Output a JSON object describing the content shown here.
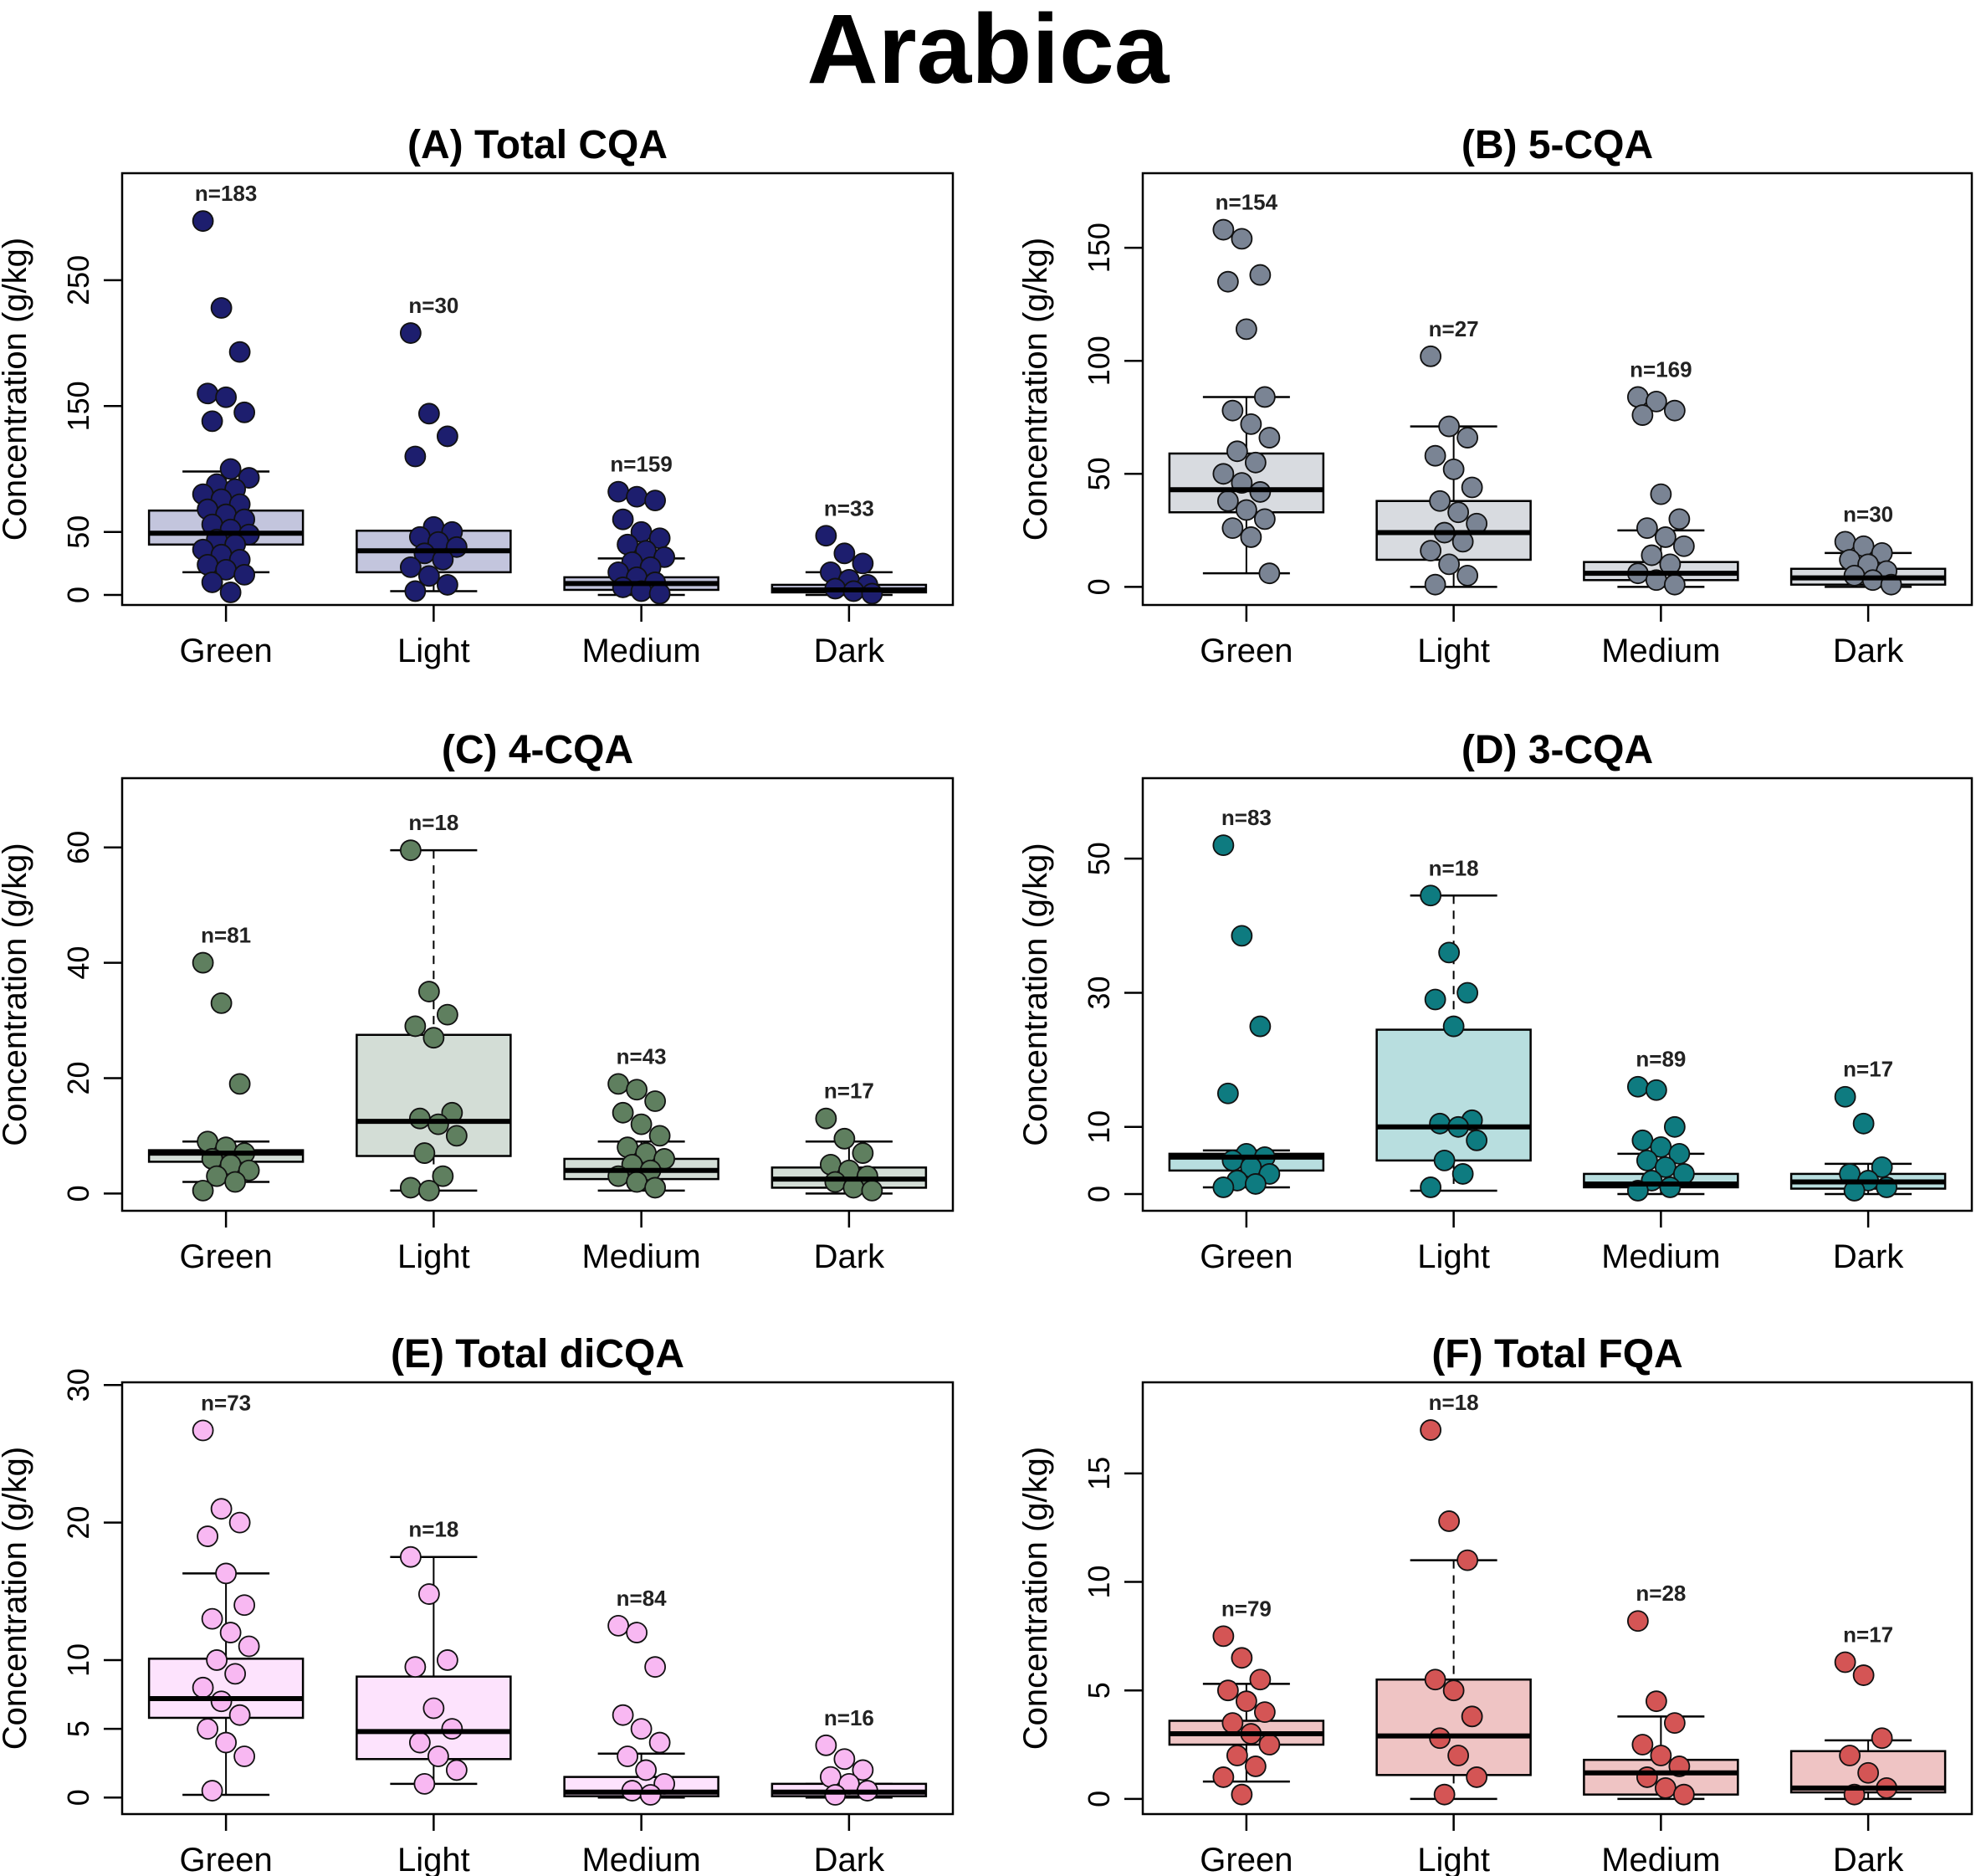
{
  "title": "Arabica",
  "chart_data": [
    {
      "type": "box",
      "title": "(A) Total CQA",
      "ylabel": "Concentration (g/kg)",
      "ylim": [
        -8,
        335
      ],
      "yticks": [
        0,
        50,
        150,
        250
      ],
      "categories": [
        "Green",
        "Light",
        "Medium",
        "Dark"
      ],
      "box_fill": "#C3C5DD",
      "point_color": "#1D1E6E",
      "groups": [
        {
          "name": "Green",
          "n_label": "n=183",
          "whisker_low": 18,
          "q1": 40,
          "median": 49,
          "q3": 67,
          "whisker_high": 98,
          "dashed": false,
          "points": [
            297,
            228,
            193,
            160,
            157,
            145,
            138,
            100,
            93,
            88,
            84,
            80,
            76,
            72,
            68,
            64,
            60,
            56,
            52,
            48,
            44,
            40,
            36,
            32,
            28,
            24,
            20,
            16,
            10,
            2
          ]
        },
        {
          "name": "Light",
          "n_label": "n=30",
          "whisker_low": 3,
          "q1": 18,
          "median": 35,
          "q3": 51,
          "whisker_high": 51,
          "dashed": false,
          "points": [
            208,
            144,
            126,
            110,
            54,
            50,
            46,
            42,
            38,
            33,
            28,
            22,
            15,
            8,
            3
          ]
        },
        {
          "name": "Medium",
          "n_label": "n=159",
          "whisker_low": 0,
          "q1": 4,
          "median": 9,
          "q3": 14,
          "whisker_high": 29,
          "dashed": false,
          "points": [
            82,
            78,
            75,
            60,
            50,
            45,
            40,
            35,
            30,
            26,
            22,
            18,
            14,
            10,
            6,
            3,
            1
          ]
        },
        {
          "name": "Dark",
          "n_label": "n=33",
          "whisker_low": 0,
          "q1": 2,
          "median": 4,
          "q3": 8,
          "whisker_high": 18,
          "dashed": false,
          "points": [
            47,
            33,
            25,
            18,
            12,
            8,
            5,
            3,
            1
          ]
        }
      ]
    },
    {
      "type": "box",
      "title": "(B) 5-CQA",
      "ylabel": "Concentration (g/kg)",
      "ylim": [
        -8,
        183
      ],
      "yticks": [
        0,
        50,
        100,
        150
      ],
      "categories": [
        "Green",
        "Light",
        "Medium",
        "Dark"
      ],
      "box_fill": "#D8DBE0",
      "point_color": "#7A8494",
      "groups": [
        {
          "name": "Green",
          "n_label": "n=154",
          "whisker_low": 6,
          "q1": 33,
          "median": 43,
          "q3": 59,
          "whisker_high": 84,
          "dashed": false,
          "points": [
            158,
            154,
            138,
            135,
            114,
            84,
            78,
            72,
            66,
            60,
            55,
            50,
            46,
            42,
            38,
            34,
            30,
            26,
            22,
            6
          ]
        },
        {
          "name": "Light",
          "n_label": "n=27",
          "whisker_low": 0,
          "q1": 12,
          "median": 24,
          "q3": 38,
          "whisker_high": 71,
          "dashed": false,
          "points": [
            102,
            71,
            66,
            58,
            52,
            44,
            38,
            33,
            28,
            24,
            20,
            16,
            10,
            5,
            1
          ]
        },
        {
          "name": "Medium",
          "n_label": "n=169",
          "whisker_low": 0,
          "q1": 3,
          "median": 6,
          "q3": 11,
          "whisker_high": 25,
          "dashed": false,
          "points": [
            84,
            82,
            78,
            76,
            41,
            30,
            26,
            22,
            18,
            14,
            10,
            6,
            3,
            1
          ]
        },
        {
          "name": "Dark",
          "n_label": "n=30",
          "whisker_low": 0,
          "q1": 1,
          "median": 4,
          "q3": 8,
          "whisker_high": 15,
          "dashed": false,
          "points": [
            20,
            18,
            15,
            12,
            10,
            7,
            5,
            3,
            1
          ]
        }
      ]
    },
    {
      "type": "box",
      "title": "(C) 4-CQA",
      "ylabel": "Concentration (g/kg)",
      "ylim": [
        -3,
        72
      ],
      "yticks": [
        0,
        20,
        40,
        60
      ],
      "categories": [
        "Green",
        "Light",
        "Medium",
        "Dark"
      ],
      "box_fill": "#D3DDD6",
      "point_color": "#5F7F5F",
      "groups": [
        {
          "name": "Green",
          "n_label": "n=81",
          "whisker_low": 2,
          "q1": 5.5,
          "median": 7,
          "q3": 7.5,
          "whisker_high": 9,
          "dashed": false,
          "points": [
            40,
            33,
            19,
            9,
            8,
            7,
            6,
            5,
            4,
            3,
            2,
            0.5
          ]
        },
        {
          "name": "Light",
          "n_label": "n=18",
          "whisker_low": 0.5,
          "q1": 6.5,
          "median": 12.5,
          "q3": 27.5,
          "whisker_high": 59.5,
          "dashed": true,
          "points": [
            59.5,
            35,
            31,
            29,
            27,
            14,
            13,
            12,
            10,
            7,
            3,
            1,
            0.5
          ]
        },
        {
          "name": "Medium",
          "n_label": "n=43",
          "whisker_low": 0.5,
          "q1": 2.5,
          "median": 4,
          "q3": 6,
          "whisker_high": 9,
          "dashed": false,
          "points": [
            19,
            18,
            16,
            14,
            12,
            10,
            8,
            7,
            6,
            5,
            4,
            3,
            2,
            1
          ]
        },
        {
          "name": "Dark",
          "n_label": "n=17",
          "whisker_low": 0,
          "q1": 1,
          "median": 2.5,
          "q3": 4.5,
          "whisker_high": 9,
          "dashed": false,
          "points": [
            13,
            9.5,
            7,
            5,
            4,
            3,
            2,
            1,
            0.5
          ]
        }
      ]
    },
    {
      "type": "box",
      "title": "(D) 3-CQA",
      "ylabel": "Concentration (g/kg)",
      "ylim": [
        -2.5,
        62
      ],
      "yticks": [
        0,
        10,
        30,
        50
      ],
      "categories": [
        "Green",
        "Light",
        "Medium",
        "Dark"
      ],
      "box_fill": "#B8DEDF",
      "point_color": "#0E7B80",
      "groups": [
        {
          "name": "Green",
          "n_label": "n=83",
          "whisker_low": 1,
          "q1": 3.5,
          "median": 5.5,
          "q3": 6,
          "whisker_high": 6.5,
          "dashed": false,
          "points": [
            52,
            38.5,
            25,
            15,
            6,
            5.5,
            5,
            4,
            3,
            2,
            1.5,
            1
          ]
        },
        {
          "name": "Light",
          "n_label": "n=18",
          "whisker_low": 0.5,
          "q1": 5,
          "median": 10,
          "q3": 24.5,
          "whisker_high": 44.5,
          "dashed": true,
          "points": [
            44.5,
            36,
            30,
            29,
            25,
            11,
            10.5,
            10,
            8,
            5,
            3,
            1
          ]
        },
        {
          "name": "Medium",
          "n_label": "n=89",
          "whisker_low": 0,
          "q1": 1,
          "median": 1.5,
          "q3": 3,
          "whisker_high": 6,
          "dashed": false,
          "points": [
            16,
            15.5,
            10,
            8,
            7,
            6,
            5,
            4,
            3,
            2,
            1,
            0.5
          ]
        },
        {
          "name": "Dark",
          "n_label": "n=17",
          "whisker_low": 0,
          "q1": 0.8,
          "median": 1.8,
          "q3": 3,
          "whisker_high": 4.5,
          "dashed": false,
          "points": [
            14.5,
            10.5,
            4,
            3,
            2,
            1,
            0.5
          ]
        }
      ]
    },
    {
      "type": "box",
      "title": "(E) Total diCQA",
      "ylabel": "Concentration (g/kg)",
      "ylim": [
        -1.2,
        30.2
      ],
      "yticks": [
        0,
        5,
        10,
        20,
        30
      ],
      "categories": [
        "Green",
        "Light",
        "Medium",
        "Dark"
      ],
      "box_fill": "#FDE3FD",
      "point_color": "#F8B8F2",
      "groups": [
        {
          "name": "Green",
          "n_label": "n=73",
          "whisker_low": 0.2,
          "q1": 5.8,
          "median": 7.2,
          "q3": 10.1,
          "whisker_high": 16.3,
          "dashed": false,
          "points": [
            26.7,
            21,
            20,
            19,
            16.3,
            14,
            13,
            12,
            11,
            10,
            9,
            8,
            7,
            6,
            5,
            4,
            3,
            0.5
          ]
        },
        {
          "name": "Light",
          "n_label": "n=18",
          "whisker_low": 1,
          "q1": 2.8,
          "median": 4.8,
          "q3": 8.8,
          "whisker_high": 17.5,
          "dashed": false,
          "points": [
            17.5,
            14.8,
            10,
            9.5,
            6.5,
            5,
            4,
            3,
            2,
            1
          ]
        },
        {
          "name": "Medium",
          "n_label": "n=84",
          "whisker_low": 0,
          "q1": 0.1,
          "median": 0.4,
          "q3": 1.5,
          "whisker_high": 3.2,
          "dashed": false,
          "points": [
            12.5,
            12,
            9.5,
            6,
            5,
            4,
            3,
            2,
            1,
            0.5,
            0.2
          ]
        },
        {
          "name": "Dark",
          "n_label": "n=16",
          "whisker_low": 0,
          "q1": 0.1,
          "median": 0.4,
          "q3": 1.0,
          "whisker_high": 1.0,
          "dashed": false,
          "points": [
            3.8,
            2.8,
            2,
            1.5,
            1,
            0.5,
            0.2
          ]
        }
      ]
    },
    {
      "type": "box",
      "title": "(F) Total FQA",
      "ylabel": "Concentration (g/kg)",
      "ylim": [
        -0.7,
        19.2
      ],
      "yticks": [
        0,
        5,
        10,
        15
      ],
      "categories": [
        "Green",
        "Light",
        "Medium",
        "Dark"
      ],
      "box_fill": "#EFC4C4",
      "point_color": "#D45555",
      "groups": [
        {
          "name": "Green",
          "n_label": "n=79",
          "whisker_low": 0.8,
          "q1": 2.5,
          "median": 3,
          "q3": 3.6,
          "whisker_high": 5.3,
          "dashed": false,
          "points": [
            7.5,
            6.5,
            5.5,
            5,
            4.5,
            4,
            3.5,
            3,
            2.5,
            2,
            1.5,
            1,
            0.2
          ]
        },
        {
          "name": "Light",
          "n_label": "n=18",
          "whisker_low": 0,
          "q1": 1.1,
          "median": 2.9,
          "q3": 5.5,
          "whisker_high": 11,
          "dashed": true,
          "points": [
            17,
            12.8,
            11,
            5.5,
            5,
            3.8,
            2.8,
            2,
            1,
            0.2
          ]
        },
        {
          "name": "Medium",
          "n_label": "n=28",
          "whisker_low": 0,
          "q1": 0.2,
          "median": 1.2,
          "q3": 1.8,
          "whisker_high": 3.8,
          "dashed": false,
          "points": [
            8.2,
            4.5,
            3.5,
            2.5,
            2,
            1.5,
            1,
            0.5,
            0.2
          ]
        },
        {
          "name": "Dark",
          "n_label": "n=17",
          "whisker_low": 0,
          "q1": 0.3,
          "median": 0.5,
          "q3": 2.2,
          "whisker_high": 2.7,
          "dashed": false,
          "points": [
            6.3,
            5.7,
            2.8,
            2,
            1.2,
            0.5,
            0.2
          ]
        }
      ]
    }
  ]
}
